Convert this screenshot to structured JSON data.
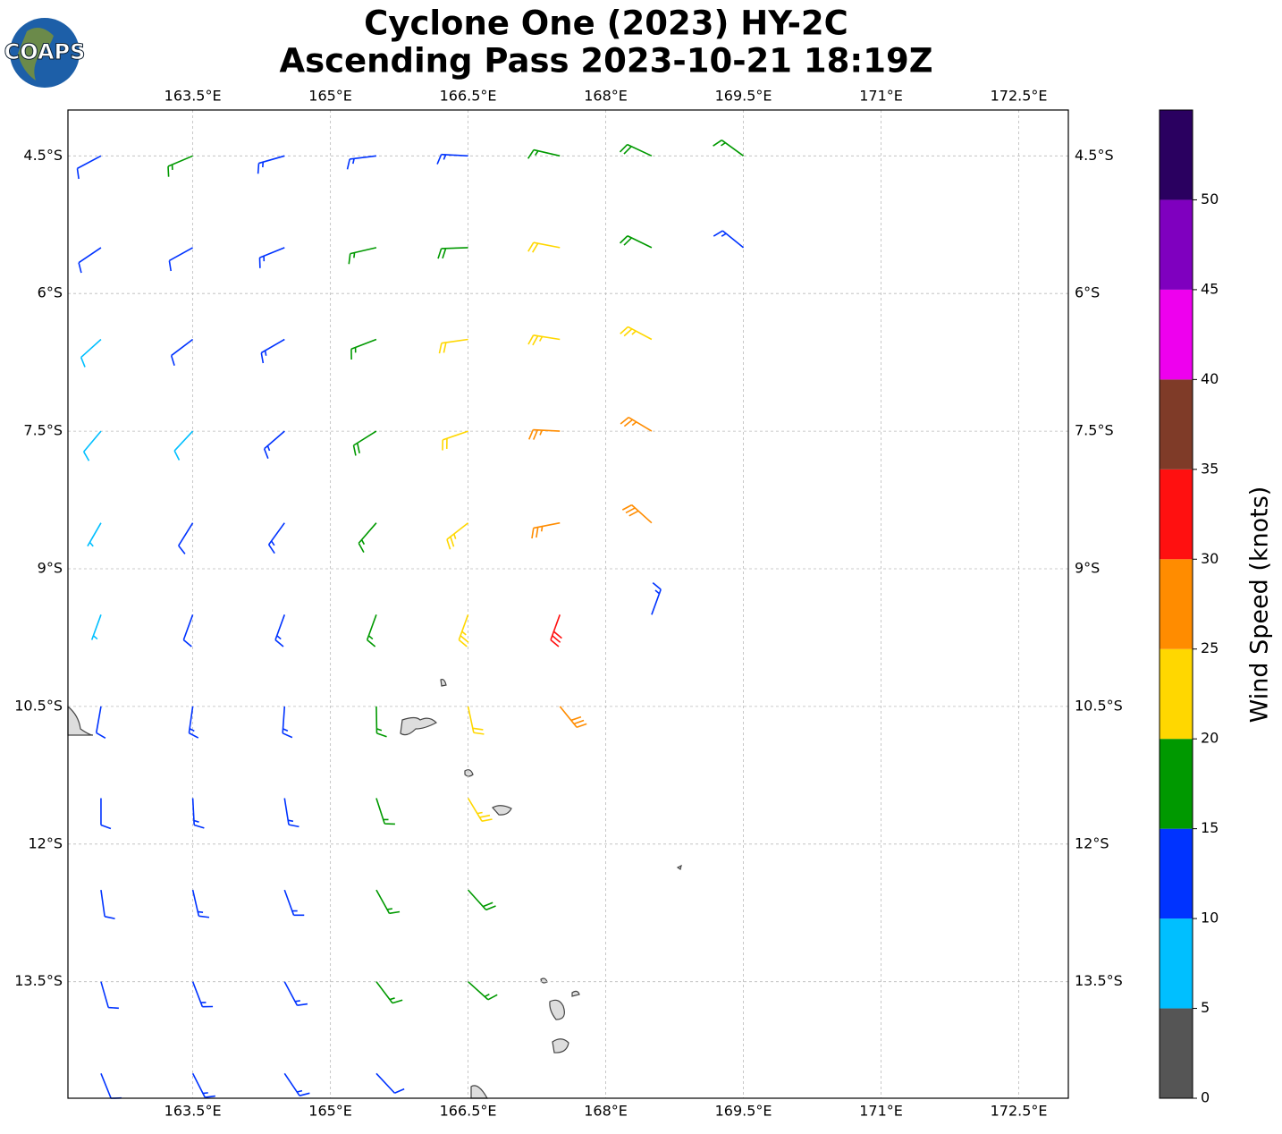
{
  "title_lines": [
    "Cyclone One (2023) HY-2C",
    "Ascending Pass 2023-10-21 18:19Z"
  ],
  "logo": "COAPS",
  "chart_data": {
    "type": "barbs",
    "xlim": [
      162.14,
      173.04
    ],
    "ylim": [
      -14.77,
      -4.0
    ],
    "xticks": [
      {
        "value": 163.5,
        "label": "163.5°E"
      },
      {
        "value": 165,
        "label": "165°E"
      },
      {
        "value": 166.5,
        "label": "166.5°E"
      },
      {
        "value": 168,
        "label": "168°E"
      },
      {
        "value": 169.5,
        "label": "169.5°E"
      },
      {
        "value": 171,
        "label": "171°E"
      },
      {
        "value": 172.5,
        "label": "172.5°E"
      }
    ],
    "yticks": [
      {
        "value": -4.5,
        "label": "4.5°S"
      },
      {
        "value": -6,
        "label": "6°S"
      },
      {
        "value": -7.5,
        "label": "7.5°S"
      },
      {
        "value": -9,
        "label": "9°S"
      },
      {
        "value": -10.5,
        "label": "10.5°S"
      },
      {
        "value": -12,
        "label": "12°S"
      },
      {
        "value": -13.5,
        "label": "13.5°S"
      }
    ],
    "grid": true,
    "barbs": [
      [
        162.5,
        -4.5,
        12,
        242
      ],
      [
        163.5,
        -4.5,
        16,
        247
      ],
      [
        164.5,
        -4.5,
        13,
        254
      ],
      [
        165.5,
        -4.5,
        14,
        263
      ],
      [
        166.5,
        -4.5,
        13,
        273
      ],
      [
        167.5,
        -4.5,
        17,
        283
      ],
      [
        168.5,
        -4.5,
        18,
        295
      ],
      [
        169.5,
        -4.5,
        17,
        306
      ],
      [
        162.5,
        -5.5,
        12,
        236
      ],
      [
        163.5,
        -5.5,
        12,
        241
      ],
      [
        164.5,
        -5.5,
        14,
        248
      ],
      [
        165.5,
        -5.5,
        17,
        257
      ],
      [
        166.5,
        -5.5,
        19,
        268
      ],
      [
        167.5,
        -5.5,
        22,
        281
      ],
      [
        168.5,
        -5.5,
        18,
        296
      ],
      [
        169.5,
        -5.5,
        14,
        309
      ],
      [
        162.5,
        -6.5,
        8,
        228
      ],
      [
        163.5,
        -6.5,
        12,
        233
      ],
      [
        164.5,
        -6.5,
        13,
        240
      ],
      [
        165.5,
        -6.5,
        17,
        249
      ],
      [
        166.5,
        -6.5,
        22,
        262
      ],
      [
        167.5,
        -6.5,
        24,
        279
      ],
      [
        168.5,
        -6.5,
        23,
        298
      ],
      [
        162.5,
        -7.5,
        8,
        220
      ],
      [
        163.5,
        -7.5,
        9,
        223
      ],
      [
        164.5,
        -7.5,
        13,
        229
      ],
      [
        165.5,
        -7.5,
        18,
        238
      ],
      [
        166.5,
        -7.5,
        22,
        251
      ],
      [
        167.5,
        -7.5,
        27,
        273
      ],
      [
        168.5,
        -7.5,
        27,
        301
      ],
      [
        162.5,
        -8.5,
        7,
        210
      ],
      [
        163.5,
        -8.5,
        12,
        212
      ],
      [
        164.5,
        -8.5,
        13,
        216
      ],
      [
        165.5,
        -8.5,
        17,
        221
      ],
      [
        166.5,
        -8.5,
        23,
        232
      ],
      [
        167.5,
        -8.5,
        27,
        259
      ],
      [
        168.5,
        -8.5,
        28,
        312
      ],
      [
        162.5,
        -9.5,
        7,
        200
      ],
      [
        163.5,
        -9.5,
        12,
        200
      ],
      [
        164.5,
        -9.5,
        13,
        200
      ],
      [
        165.5,
        -9.5,
        17,
        200
      ],
      [
        166.5,
        -9.5,
        23,
        200
      ],
      [
        167.5,
        -9.5,
        31,
        200
      ],
      [
        168.5,
        -9.5,
        14,
        20
      ],
      [
        162.5,
        -10.5,
        12,
        190
      ],
      [
        163.5,
        -10.5,
        13,
        188
      ],
      [
        164.5,
        -10.5,
        13,
        184
      ],
      [
        165.5,
        -10.5,
        17,
        179
      ],
      [
        166.5,
        -10.5,
        22,
        168
      ],
      [
        167.5,
        -10.5,
        28,
        141
      ],
      [
        162.5,
        -11.5,
        12,
        180
      ],
      [
        163.5,
        -11.5,
        13,
        177
      ],
      [
        164.5,
        -11.5,
        14,
        171
      ],
      [
        165.5,
        -11.5,
        17,
        162
      ],
      [
        166.5,
        -11.5,
        23,
        149
      ],
      [
        162.5,
        -12.5,
        12,
        172
      ],
      [
        163.5,
        -12.5,
        13,
        167
      ],
      [
        164.5,
        -12.5,
        14,
        160
      ],
      [
        165.5,
        -12.5,
        17,
        151
      ],
      [
        166.5,
        -12.5,
        18,
        138
      ],
      [
        162.5,
        -13.5,
        12,
        164
      ],
      [
        163.5,
        -13.5,
        13,
        159
      ],
      [
        164.5,
        -13.5,
        14,
        152
      ],
      [
        165.5,
        -13.5,
        17,
        143
      ],
      [
        166.5,
        -13.5,
        17,
        132
      ],
      [
        162.5,
        -14.5,
        12,
        158
      ],
      [
        163.5,
        -14.5,
        13,
        153
      ],
      [
        164.5,
        -14.5,
        13,
        146
      ],
      [
        165.5,
        -14.5,
        12,
        137
      ]
    ],
    "colorbar": {
      "label": "Wind Speed (knots)",
      "lim": [
        0,
        55
      ],
      "ticks": [
        0,
        5,
        10,
        15,
        20,
        25,
        30,
        35,
        40,
        45,
        50
      ],
      "bounds": [
        0,
        5,
        10,
        15,
        20,
        25,
        30,
        35,
        40,
        45,
        50,
        55
      ],
      "colors": [
        "#555555",
        "#00bfff",
        "#0033ff",
        "#009900",
        "#ffd700",
        "#ff8c00",
        "#ff1010",
        "#7f3b28",
        "#ee00ee",
        "#7f00bf",
        "#2a0060"
      ]
    }
  }
}
